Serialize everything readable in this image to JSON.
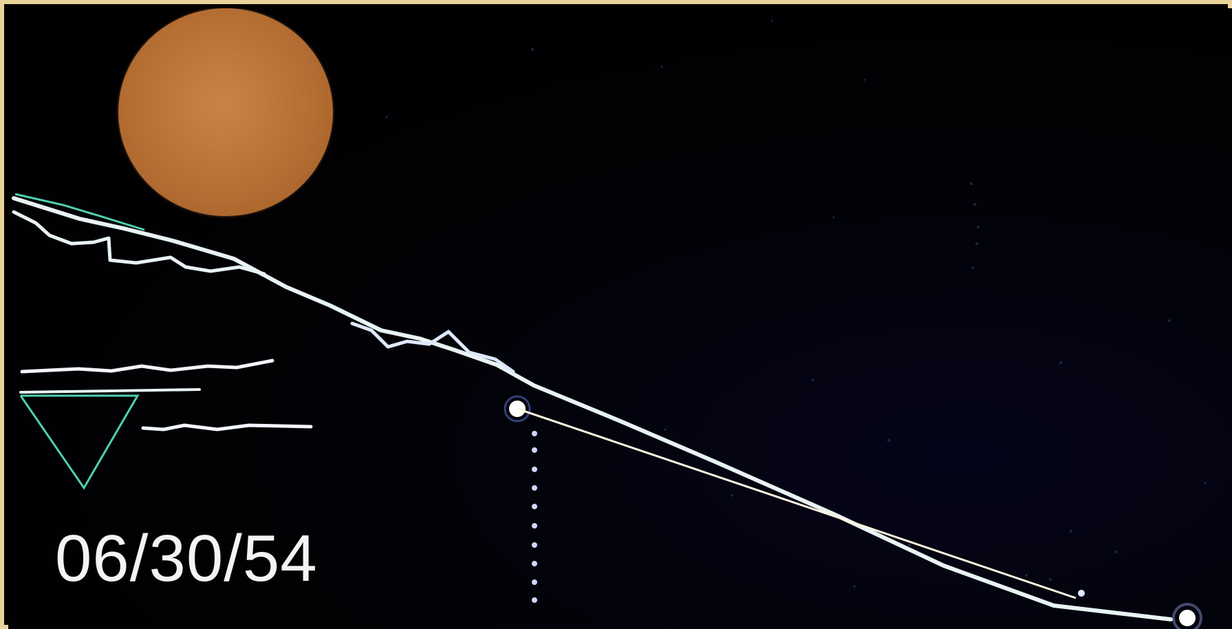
{
  "scene": {
    "date_stamp": "06/30/54",
    "colors": {
      "border": "#e8d39a",
      "background": "#020203",
      "sun": "#b66f33",
      "trace": "#e8f3f3",
      "teal_line": "#4fd0b0",
      "beam": "#fff7df",
      "marker_dots": "#cfd6ff"
    },
    "icons": {
      "sun": "sun-disk",
      "triangle": "inverted-triangle",
      "marker": "light-point"
    }
  }
}
